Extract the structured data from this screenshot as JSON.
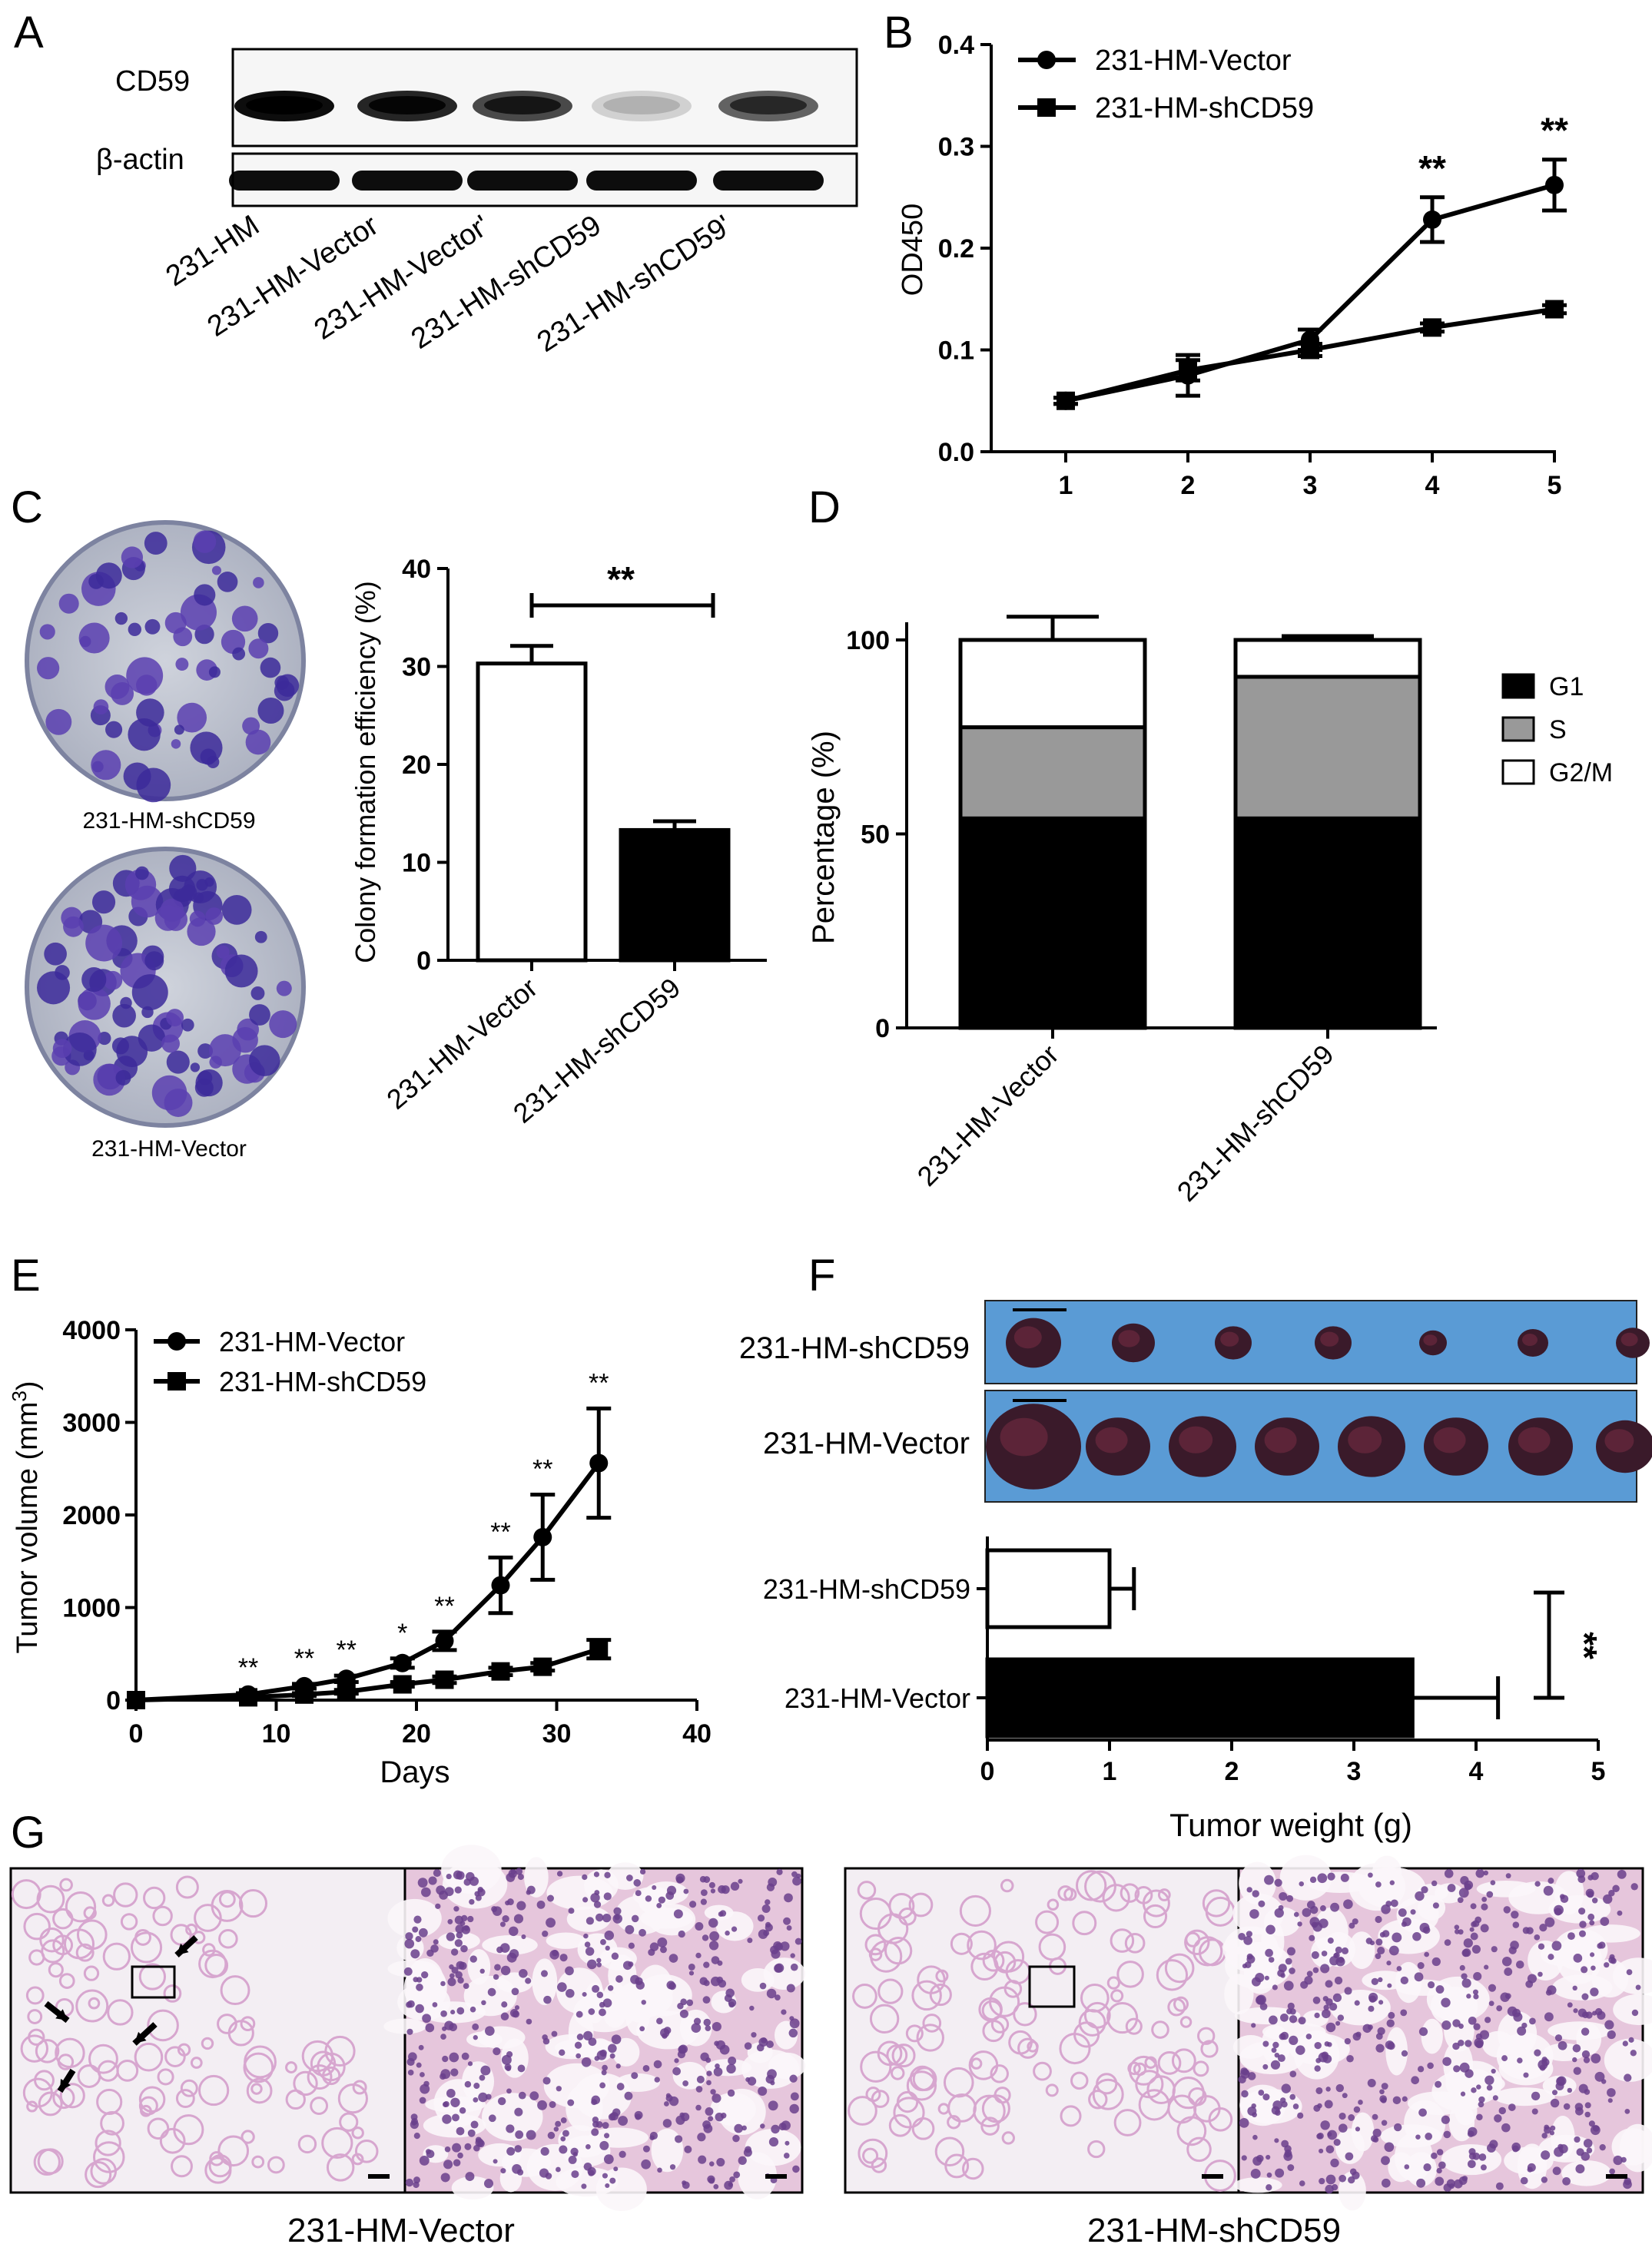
{
  "panels": {
    "A": {
      "letter": "A",
      "blot_labels": [
        "CD59",
        "β-actin"
      ],
      "lane_labels": [
        "231-HM",
        "231-HM-Vector",
        "231-HM-Vector'",
        "231-HM-shCD59",
        "231-HM-shCD59'"
      ],
      "cd59_intensity": [
        0.95,
        0.85,
        0.7,
        0.15,
        0.6
      ],
      "actin_intensity": [
        0.95,
        0.95,
        0.95,
        0.95,
        0.95
      ]
    },
    "B": {
      "letter": "B"
    },
    "C": {
      "letter": "C",
      "plate_labels": [
        "231-HM-shCD59",
        "231-HM-Vector"
      ],
      "plate_colony_density": [
        0.55,
        0.8
      ]
    },
    "D": {
      "letter": "D"
    },
    "E": {
      "letter": "E"
    },
    "F": {
      "letter": "F",
      "photo_labels": [
        "231-HM-shCD59",
        "231-HM-Vector"
      ],
      "photo_tumor_count": [
        7,
        8
      ],
      "photo_background": "#5a9bd5"
    },
    "G": {
      "letter": "G",
      "captions": [
        "231-HM-Vector",
        "231-HM-shCD59"
      ],
      "tissue_color": "#d7a6cf",
      "nuclei_color": "#6a3f8c"
    }
  },
  "chart_data": [
    {
      "id": "B",
      "type": "line",
      "x": [
        1,
        2,
        3,
        4,
        5
      ],
      "xticks": [
        "1",
        "2",
        "3",
        "4",
        "5"
      ],
      "ylabel": "OD450",
      "xlabel": "",
      "ylim": [
        0.0,
        0.4
      ],
      "yticks": [
        "0.0",
        "0.1",
        "0.2",
        "0.3",
        "0.4"
      ],
      "legend": "top-left",
      "series": [
        {
          "name": "231-HM-Vector",
          "marker": "circle",
          "values": [
            0.05,
            0.075,
            0.11,
            0.228,
            0.262
          ],
          "errors": [
            0.003,
            0.02,
            0.01,
            0.022,
            0.025
          ]
        },
        {
          "name": "231-HM-shCD59",
          "marker": "square",
          "values": [
            0.05,
            0.08,
            0.1,
            0.122,
            0.14
          ],
          "errors": [
            0.003,
            0.01,
            0.006,
            0.004,
            0.004
          ]
        }
      ],
      "annotations": [
        {
          "x": 4,
          "text": "**"
        },
        {
          "x": 5,
          "text": "**"
        }
      ]
    },
    {
      "id": "C",
      "type": "bar",
      "categories": [
        "231-HM-Vector",
        "231-HM-shCD59"
      ],
      "values": [
        30.3,
        13.3
      ],
      "errors": [
        1.8,
        0.9
      ],
      "fills": [
        "#ffffff",
        "#000000"
      ],
      "ylabel": "Colony formation efficiency (%)",
      "xlabel": "",
      "ylim": [
        0,
        40
      ],
      "yticks": [
        "0",
        "10",
        "20",
        "30",
        "40"
      ],
      "significance": "**"
    },
    {
      "id": "D",
      "type": "bar",
      "stacked": true,
      "categories": [
        "231-HM-Vector",
        "231-HM-shCD59"
      ],
      "ylabel": "Percentage (%)",
      "xlabel": "",
      "ylim": [
        0,
        100
      ],
      "yticks": [
        "0",
        "50",
        "100"
      ],
      "legend": "right",
      "series": [
        {
          "name": "G1",
          "color": "#000000",
          "values": [
            54,
            54
          ],
          "errors": [
            1,
            3.5
          ]
        },
        {
          "name": "S",
          "color": "#999999",
          "values": [
            23.5,
            36.5
          ],
          "errors": [
            4.5,
            4
          ]
        },
        {
          "name": "G2/M",
          "color": "#ffffff",
          "values": [
            22.5,
            9.5
          ],
          "errors": [
            6,
            1
          ]
        }
      ]
    },
    {
      "id": "E",
      "type": "line",
      "x": [
        0,
        8,
        12,
        15,
        19,
        22,
        26,
        29,
        33
      ],
      "xlabel": "Days",
      "ylabel_main": "Tumor volume (mm",
      "ylabel_sup": "3",
      "ylabel_end": ")",
      "xlim": [
        0,
        40
      ],
      "xticks": [
        "0",
        "10",
        "20",
        "30",
        "40"
      ],
      "ylim": [
        0,
        4000
      ],
      "yticks": [
        "0",
        "1000",
        "2000",
        "3000",
        "4000"
      ],
      "legend": "top-left",
      "series": [
        {
          "name": "231-HM-Vector",
          "marker": "circle",
          "values": [
            0,
            60,
            150,
            230,
            400,
            640,
            1240,
            1760,
            2560
          ],
          "errors": [
            0,
            15,
            25,
            35,
            50,
            100,
            300,
            460,
            590
          ]
        },
        {
          "name": "231-HM-shCD59",
          "marker": "square",
          "values": [
            0,
            30,
            60,
            90,
            170,
            220,
            310,
            360,
            550
          ],
          "errors": [
            0,
            10,
            15,
            20,
            25,
            35,
            40,
            40,
            100
          ]
        }
      ],
      "annotations": [
        {
          "x": 8,
          "text": "**"
        },
        {
          "x": 12,
          "text": "**"
        },
        {
          "x": 15,
          "text": "**"
        },
        {
          "x": 19,
          "text": "*"
        },
        {
          "x": 22,
          "text": "**"
        },
        {
          "x": 26,
          "text": "**"
        },
        {
          "x": 29,
          "text": "**"
        },
        {
          "x": 33,
          "text": "**"
        }
      ]
    },
    {
      "id": "F",
      "type": "bar",
      "orientation": "horizontal",
      "categories": [
        "231-HM-shCD59",
        "231-HM-Vector"
      ],
      "values": [
        1.0,
        3.48
      ],
      "errors": [
        0.2,
        0.7
      ],
      "fills": [
        "#ffffff",
        "#000000"
      ],
      "xlabel": "Tumor weight (g)",
      "ylabel": "",
      "xlim": [
        0,
        5
      ],
      "xticks": [
        "0",
        "1",
        "2",
        "3",
        "4",
        "5"
      ],
      "significance": "**"
    }
  ]
}
